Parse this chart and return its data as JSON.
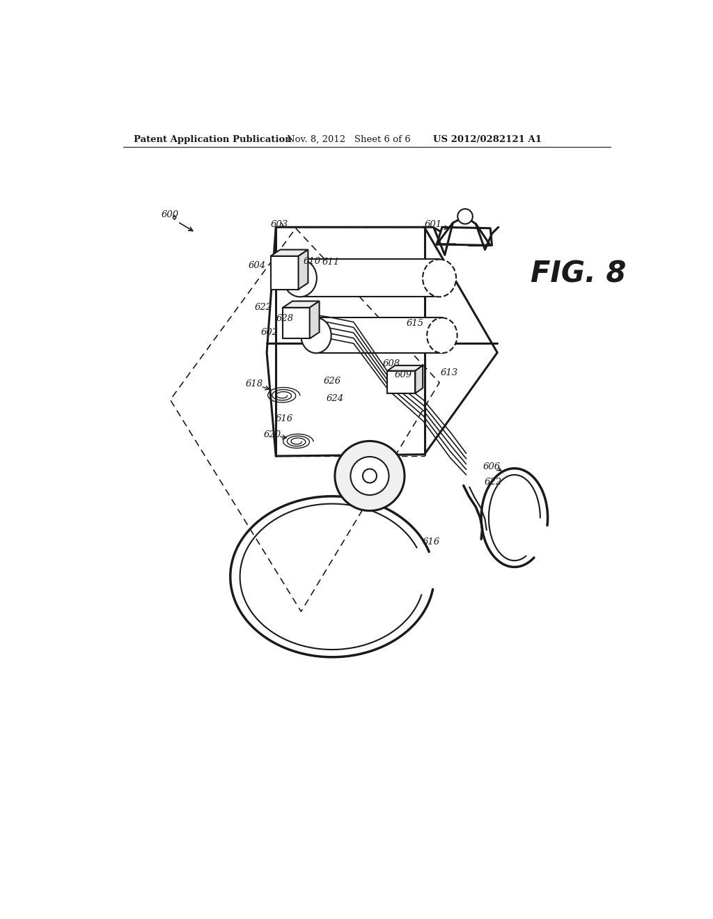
{
  "bg_color": "#ffffff",
  "line_color": "#1a1a1a",
  "header_left": "Patent Application Publication",
  "header_mid": "Nov. 8, 2012   Sheet 6 of 6",
  "header_right": "US 2012/0282121 A1",
  "fig_label": "FIG. 8",
  "lw_main": 1.5,
  "lw_thick": 2.2,
  "lw_thin": 0.9,
  "lw_dashed": 1.1
}
